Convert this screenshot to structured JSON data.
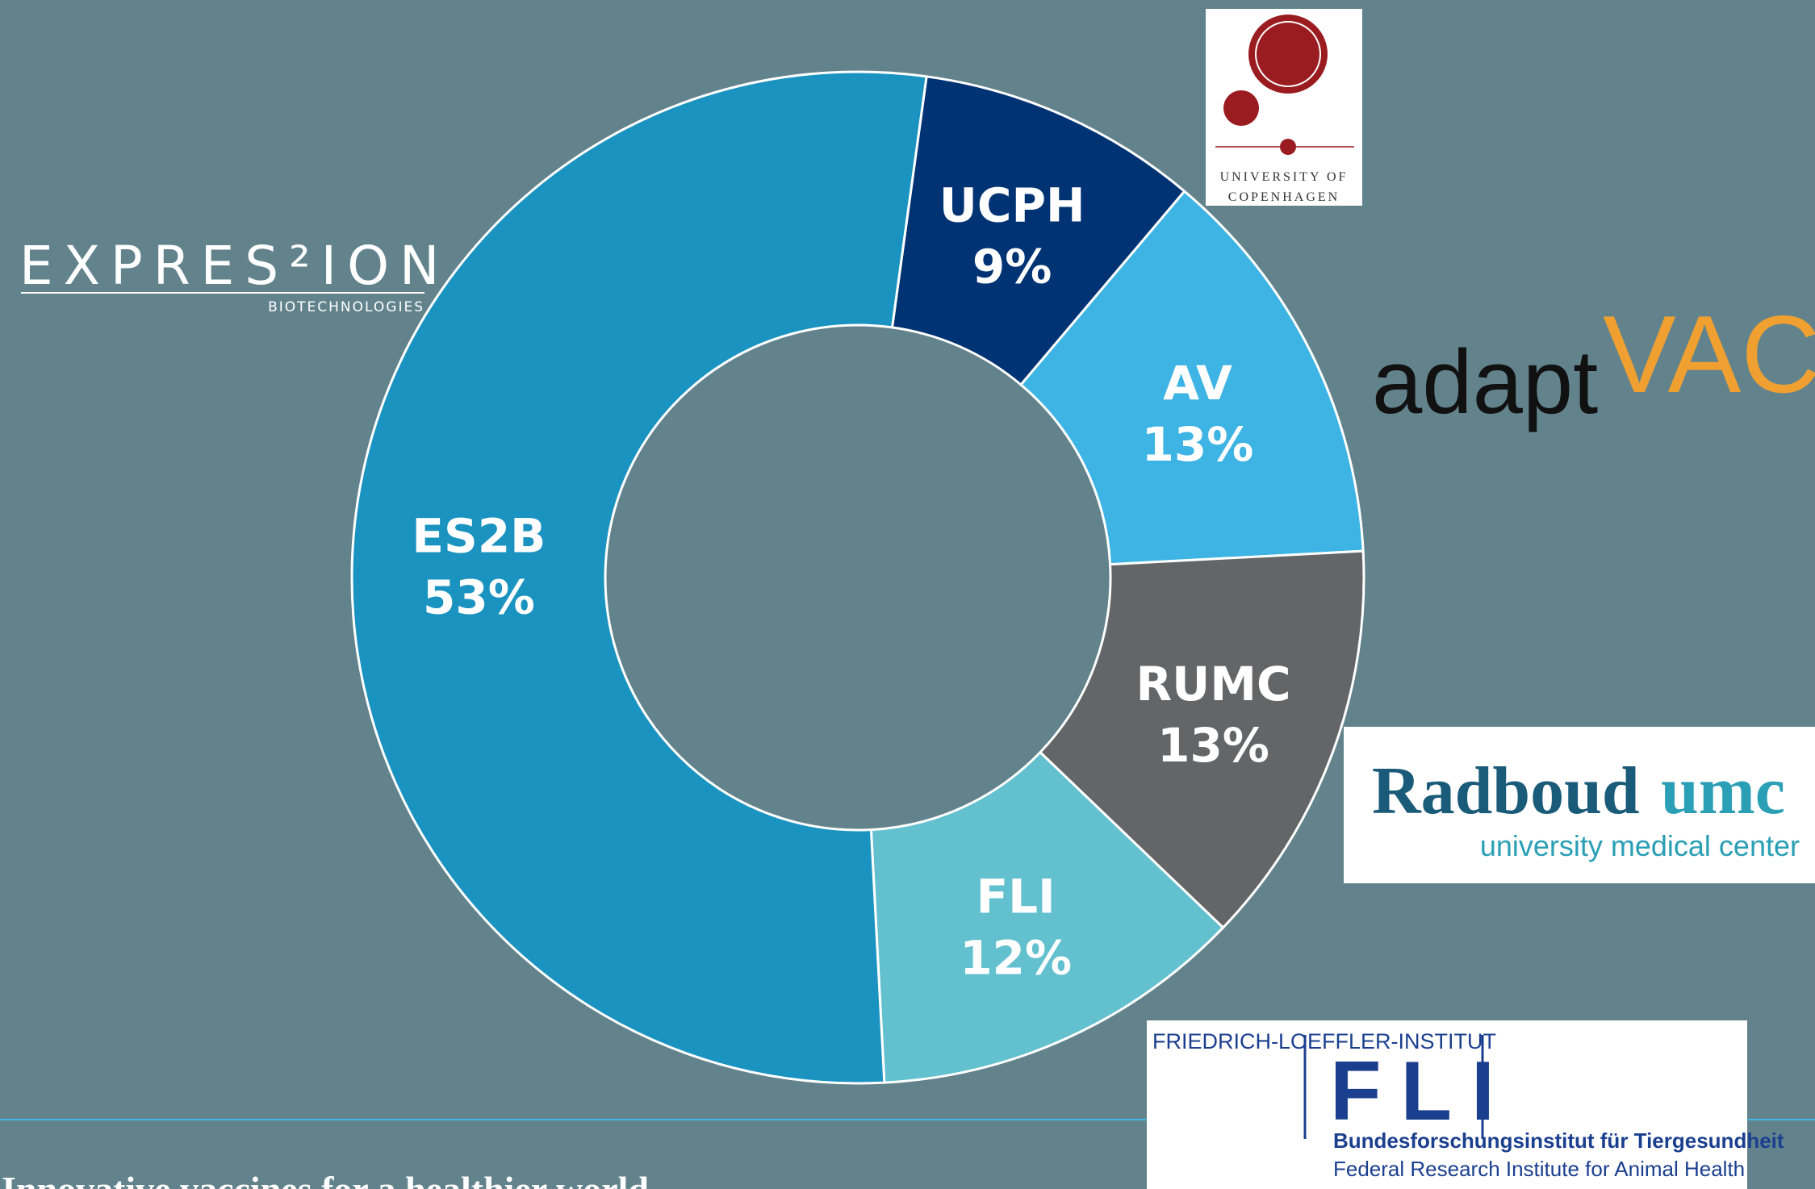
{
  "chart_data": {
    "type": "donut",
    "categories": [
      "UCPH",
      "AV",
      "RUMC",
      "FLI",
      "ES2B"
    ],
    "values": [
      9,
      13,
      13,
      12,
      53
    ],
    "value_labels": [
      "9%",
      "13%",
      "13%",
      "12%",
      "53%"
    ],
    "colors": [
      "#003373",
      "#3db4e3",
      "#646567",
      "#62c0cf",
      "#1b93c0"
    ]
  },
  "logos": {
    "expression": {
      "name": "EXPRES²ION",
      "sub": "BIOTECHNOLOGIES"
    },
    "ucph": {
      "line1": "UNIVERSITY OF",
      "line2": "COPENHAGEN"
    },
    "adaptvac": {
      "part1": "adapt",
      "part2": "VAC"
    },
    "radboud": {
      "part1": "Radboud",
      "part2": "umc",
      "sub": "university medical center"
    },
    "fli": {
      "top": "FRIEDRICH-LOEFFLER-INSTITUT",
      "name": "FLI",
      "line1": "Bundesforschungsinstitut für Tiergesundheit",
      "line2": "Federal Research Institute for Animal Health"
    }
  },
  "footer": "Innovative vaccines for a healthier world"
}
